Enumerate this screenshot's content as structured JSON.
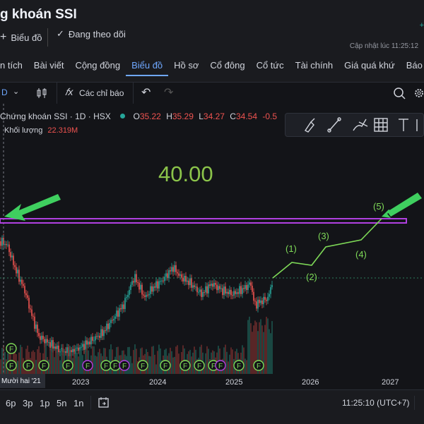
{
  "header": {
    "title": "g khoán SSI",
    "chart_button": "Biểu đồ",
    "follow_button": "Đang theo dõi",
    "updated": "Cập nhật lúc  11:25:12",
    "corner": "+"
  },
  "tabs": [
    {
      "label": "n tích"
    },
    {
      "label": "Bài viết"
    },
    {
      "label": "Cộng đồng"
    },
    {
      "label": "Biểu đồ"
    },
    {
      "label": "Hồ sơ"
    },
    {
      "label": "Cổ đông"
    },
    {
      "label": "Cổ tức"
    },
    {
      "label": "Tài chính"
    },
    {
      "label": "Giá quá khứ"
    },
    {
      "label": "Báo cáo"
    }
  ],
  "toolbar": {
    "interval": "D",
    "indicators": "Các chỉ báo"
  },
  "legend": {
    "symbol": "Chứng khoán SSI · 1D · HSX",
    "o_label": "O",
    "o_value": "35.22",
    "h_label": "H",
    "h_value": "35.29",
    "l_label": "L",
    "l_value": "34.27",
    "c_label": "C",
    "c_value": "34.54",
    "change": "-0.5",
    "volume_label": "Khối lượng",
    "volume_value": "22.319M"
  },
  "annotation": {
    "target_text": "40.00",
    "waves": [
      "(1)",
      "(2)",
      "(3)",
      "(4)",
      "(5)"
    ],
    "colors": {
      "target": "#8bc34a",
      "wave": "#7ed957",
      "band": "#b040e0",
      "arrow": "#3fcf5f"
    }
  },
  "chart_data": {
    "type": "line",
    "x_labels": [
      "Mười hai '21",
      "2023",
      "2024",
      "2025",
      "2026",
      "2027"
    ],
    "y_target": 40.0,
    "event_marker": "F"
  },
  "time_axis": {
    "labels": [
      "Mười hai '21",
      "2023",
      "2024",
      "2025",
      "2026",
      "2027"
    ]
  },
  "bottom": {
    "ranges": [
      "6p",
      "3p",
      "1p",
      "5n",
      "1n"
    ],
    "clock": "11:25:10 (UTC+7)"
  },
  "colors": {
    "up": "#26a69a",
    "down": "#ef5350",
    "accent": "#6fa8ff"
  }
}
